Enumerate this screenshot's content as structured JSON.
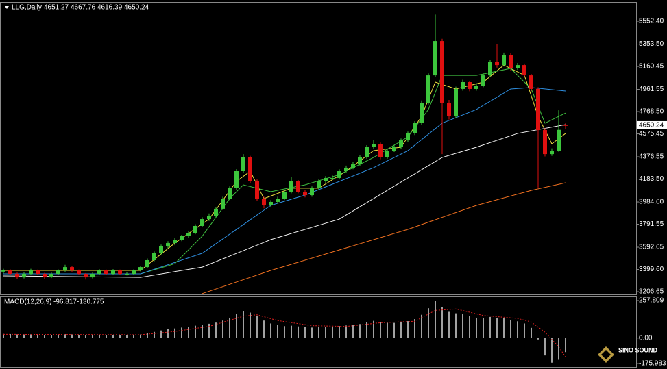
{
  "chart_data": [
    {
      "type": "candlestick",
      "symbol": "LLG,Daily",
      "up_color": "#3cc63c",
      "down_color": "#e01010",
      "ylim": [
        3183,
        5713
      ],
      "yticks": [
        {
          "value": 5552.4,
          "label": "5552.40"
        },
        {
          "value": 5353.5,
          "label": "5353.50"
        },
        5160.45,
        4961.55,
        {
          "value": 4768.5,
          "label": "4768.50"
        },
        4575.45,
        4376.55,
        {
          "value": 4183.5,
          "label": "4183.50"
        },
        {
          "value": 3984.6,
          "label": "3984.60"
        },
        3791.55,
        3592.65,
        {
          "value": 3399.6,
          "label": "3399.60"
        },
        3206.65
      ],
      "candles": [
        [
          3380,
          3405,
          3365,
          3391
        ],
        [
          3391,
          3400,
          3350,
          3361
        ],
        [
          3361,
          3372,
          3318,
          3331
        ],
        [
          3331,
          3375,
          3322,
          3361
        ],
        [
          3361,
          3405,
          3352,
          3391
        ],
        [
          3391,
          3398,
          3350,
          3361
        ],
        [
          3361,
          3370,
          3318,
          3331
        ],
        [
          3331,
          3372,
          3325,
          3361
        ],
        [
          3361,
          3400,
          3355,
          3391
        ],
        [
          3391,
          3440,
          3380,
          3420
        ],
        [
          3420,
          3428,
          3380,
          3391
        ],
        [
          3391,
          3398,
          3350,
          3361
        ],
        [
          3361,
          3368,
          3312,
          3331
        ],
        [
          3331,
          3372,
          3322,
          3361
        ],
        [
          3361,
          3402,
          3352,
          3391
        ],
        [
          3391,
          3398,
          3352,
          3361
        ],
        [
          3361,
          3402,
          3355,
          3391
        ],
        [
          3391,
          3398,
          3352,
          3361
        ],
        [
          3361,
          3375,
          3348,
          3361
        ],
        [
          3361,
          3400,
          3355,
          3391
        ],
        [
          3391,
          3432,
          3382,
          3420
        ],
        [
          3420,
          3495,
          3410,
          3480
        ],
        [
          3480,
          3555,
          3470,
          3540
        ],
        [
          3540,
          3615,
          3530,
          3599
        ],
        [
          3599,
          3645,
          3585,
          3628
        ],
        [
          3628,
          3672,
          3610,
          3658
        ],
        [
          3658,
          3700,
          3645,
          3688
        ],
        [
          3688,
          3732,
          3675,
          3717
        ],
        [
          3717,
          3792,
          3705,
          3777
        ],
        [
          3777,
          3852,
          3765,
          3836
        ],
        [
          3836,
          3885,
          3820,
          3866
        ],
        [
          3866,
          3942,
          3852,
          3926
        ],
        [
          3926,
          4030,
          3915,
          4014
        ],
        [
          4014,
          4120,
          4000,
          4104
        ],
        [
          4104,
          4270,
          4090,
          4252
        ],
        [
          4252,
          4400,
          4240,
          4371
        ],
        [
          4371,
          4385,
          4150,
          4163
        ],
        [
          4163,
          4180,
          3995,
          4014
        ],
        [
          4014,
          4030,
          3930,
          3955
        ],
        [
          3955,
          4000,
          3940,
          3985
        ],
        [
          3985,
          4030,
          3970,
          4014
        ],
        [
          4014,
          4090,
          4000,
          4074
        ],
        [
          4074,
          4200,
          4060,
          4163
        ],
        [
          4163,
          4175,
          4060,
          4074
        ],
        [
          4074,
          4090,
          4025,
          4044
        ],
        [
          4044,
          4120,
          4030,
          4104
        ],
        [
          4104,
          4180,
          4090,
          4163
        ],
        [
          4163,
          4210,
          4150,
          4193
        ],
        [
          4193,
          4215,
          4175,
          4193
        ],
        [
          4193,
          4268,
          4180,
          4252
        ],
        [
          4252,
          4300,
          4240,
          4282
        ],
        [
          4282,
          4330,
          4268,
          4311
        ],
        [
          4311,
          4390,
          4298,
          4371
        ],
        [
          4371,
          4478,
          4360,
          4460
        ],
        [
          4460,
          4520,
          4445,
          4489
        ],
        [
          4489,
          4500,
          4355,
          4371
        ],
        [
          4371,
          4445,
          4360,
          4430
        ],
        [
          4430,
          4478,
          4418,
          4460
        ],
        [
          4460,
          4535,
          4445,
          4519
        ],
        [
          4519,
          4595,
          4505,
          4579
        ],
        [
          4579,
          4685,
          4565,
          4668
        ],
        [
          4668,
          4865,
          4650,
          4846
        ],
        [
          4846,
          5100,
          4830,
          5083
        ],
        [
          5083,
          5610,
          5070,
          5380
        ],
        [
          5380,
          5400,
          4400,
          4846
        ],
        [
          4846,
          4870,
          4700,
          4727
        ],
        [
          4727,
          4985,
          4715,
          4965
        ],
        [
          4965,
          5045,
          4950,
          5024
        ],
        [
          5024,
          5035,
          4945,
          4965
        ],
        [
          4965,
          5015,
          4950,
          4994
        ],
        [
          4994,
          5100,
          4980,
          5083
        ],
        [
          5083,
          5220,
          5070,
          5202
        ],
        [
          5202,
          5353,
          5150,
          5172
        ],
        [
          5172,
          5280,
          5160,
          5261
        ],
        [
          5261,
          5275,
          5125,
          5143
        ],
        [
          5143,
          5190,
          5130,
          5172
        ],
        [
          5172,
          5185,
          5065,
          5083
        ],
        [
          5083,
          5095,
          4945,
          4965
        ],
        [
          4965,
          4980,
          4110,
          4608
        ],
        [
          4608,
          4625,
          4380,
          4400
        ],
        [
          4400,
          4450,
          4385,
          4430
        ],
        [
          4430,
          4780,
          4420,
          4610
        ],
        [
          4651.27,
          4667.76,
          4616.39,
          4650.24
        ]
      ],
      "series": [
        {
          "color": "#f0e040",
          "x": [
            0,
            10,
            20,
            25,
            30,
            34,
            36,
            38,
            42,
            46,
            50,
            54,
            58,
            61,
            63,
            66,
            70,
            73,
            76,
            78,
            80,
            82
          ],
          "values": [
            3391,
            3391,
            3391,
            3628,
            3836,
            4163,
            4252,
            4014,
            4104,
            4104,
            4252,
            4430,
            4460,
            4727,
            5024,
            4965,
            5024,
            5172,
            5083,
            4727,
            4489,
            4579
          ]
        },
        {
          "color": "#40c040",
          "x": [
            0,
            20,
            25,
            29,
            33,
            35,
            39,
            44,
            49,
            54,
            59,
            62,
            64,
            69,
            74,
            77,
            79,
            82
          ],
          "values": [
            3361,
            3361,
            3450,
            3688,
            4014,
            4133,
            4074,
            4133,
            4222,
            4371,
            4549,
            4787,
            5083,
            5083,
            5143,
            4965,
            4668,
            4756
          ]
        },
        {
          "color": "#2f8fe0",
          "x": [
            0,
            20,
            29,
            34,
            39,
            44,
            49,
            54,
            59,
            64,
            69,
            74,
            77,
            82
          ],
          "values": [
            3361,
            3361,
            3540,
            3747,
            3955,
            4044,
            4163,
            4282,
            4430,
            4668,
            4787,
            4965,
            4977,
            4947
          ]
        },
        {
          "color": "#f0f0f0",
          "x": [
            0,
            20,
            29,
            39,
            49,
            59,
            64,
            69,
            75,
            82
          ],
          "values": [
            3343,
            3331,
            3420,
            3658,
            3836,
            4193,
            4371,
            4460,
            4579,
            4656
          ]
        },
        {
          "color": "#f07020",
          "x": [
            29,
            39,
            49,
            59,
            69,
            77,
            82
          ],
          "values": [
            3190,
            3391,
            3569,
            3747,
            3955,
            4085,
            4151
          ]
        }
      ]
    },
    {
      "type": "macd",
      "title": "MACD(12,26,9)",
      "bar_color": "#d8d8d8",
      "signal_color": "#e02020",
      "ylim": [
        -199.4,
        281.2
      ],
      "yticks": [
        257.809,
        {
          "value": 0,
          "label": "0.00"
        },
        -175.983
      ],
      "histogram": [
        28,
        27,
        25,
        24,
        25,
        24,
        22,
        22,
        23,
        26,
        25,
        22,
        20,
        20,
        21,
        20,
        19,
        18,
        18,
        20,
        24,
        32,
        42,
        52,
        60,
        66,
        72,
        78,
        85,
        92,
        98,
        106,
        120,
        140,
        165,
        183,
        175,
        150,
        120,
        100,
        88,
        82,
        85,
        80,
        74,
        72,
        74,
        76,
        78,
        82,
        86,
        90,
        96,
        108,
        118,
        108,
        104,
        104,
        108,
        116,
        130,
        160,
        205,
        253,
        215,
        180,
        170,
        165,
        150,
        140,
        140,
        145,
        140,
        140,
        125,
        115,
        100,
        70,
        -10,
        -120,
        -170,
        -150,
        -96.817
      ],
      "signal": {
        "x": [
          0,
          20,
          25,
          30,
          35,
          37,
          40,
          45,
          50,
          55,
          60,
          63,
          66,
          70,
          75,
          77,
          79,
          81,
          82
        ],
        "values": [
          25,
          22,
          45,
          80,
          150,
          160,
          120,
          85,
          80,
          105,
          115,
          190,
          200,
          155,
          135,
          110,
          40,
          -60,
          -130.775
        ]
      }
    },
    {
      "type": "logo",
      "title": "SINO SOUND"
    }
  ]
}
